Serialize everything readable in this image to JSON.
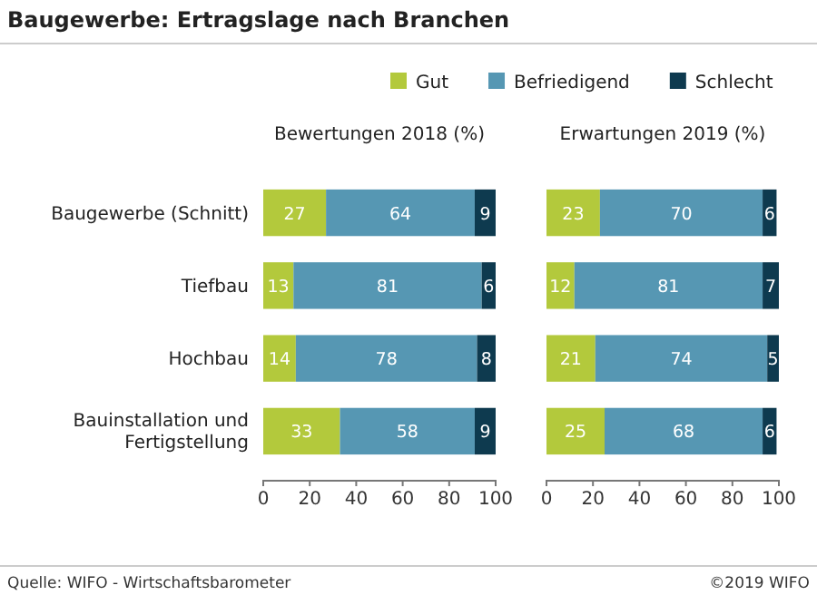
{
  "chart_data": [
    {
      "type": "bar",
      "orientation": "horizontal",
      "stacked": true,
      "title": "Baugewerbe: Ertragslage nach Branchen",
      "subtitle": "Bewertungen 2018 (%)",
      "categories": [
        "Baugewerbe (Schnitt)",
        "Tiefbau",
        "Hochbau",
        "Bauinstallation und Fertigstellung"
      ],
      "series": [
        {
          "name": "Gut",
          "color": "#b3c93c",
          "values": [
            27,
            13,
            14,
            33
          ]
        },
        {
          "name": "Befriedigend",
          "color": "#5697b3",
          "values": [
            64,
            81,
            78,
            58
          ]
        },
        {
          "name": "Schlecht",
          "color": "#0e3a4f",
          "values": [
            9,
            6,
            8,
            9
          ]
        }
      ],
      "xlim": [
        0,
        100
      ],
      "xticks": [
        0,
        20,
        40,
        60,
        80,
        100
      ],
      "data_labels": true,
      "legend": "top",
      "annotations": [
        "Quelle: WIFO - Wirtschaftsbarometer",
        "©2019 WIFO"
      ]
    },
    {
      "type": "bar",
      "orientation": "horizontal",
      "stacked": true,
      "subtitle": "Erwartungen 2019 (%)",
      "categories": [
        null,
        null,
        null,
        null
      ],
      "series": [
        {
          "color": "#b3c93c",
          "values": [
            23,
            12,
            21,
            25
          ]
        },
        {
          "color": "#5697b3",
          "values": [
            70,
            81,
            74,
            68
          ]
        },
        {
          "color": "#0e3a4f",
          "values": [
            6,
            7,
            5,
            6
          ]
        }
      ],
      "xlim": [
        0,
        100
      ],
      "xticks": [
        0,
        20,
        40,
        60,
        80,
        100
      ],
      "data_labels": true
    }
  ]
}
